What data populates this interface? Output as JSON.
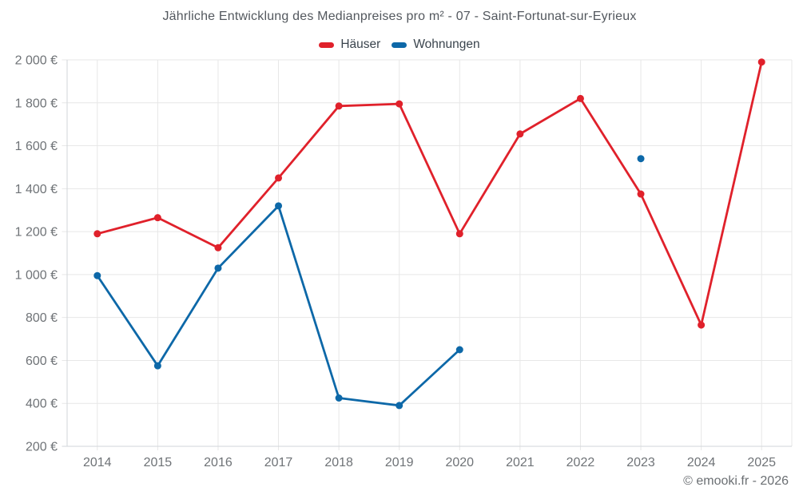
{
  "palette": {
    "background": "#ffffff",
    "grid": "#e7e7e7",
    "axis": "#d2d6da",
    "tick_text": "#6f7377",
    "title_text": "#53585e",
    "legend_text": "#3a444d",
    "footer_text": "#6b6f73",
    "series_red": "#e0212b",
    "series_blue": "#0d68a8"
  },
  "footer": {
    "copyright": "© emooki.fr - 2026"
  },
  "chart_data": {
    "type": "line",
    "title": "Jährliche Entwicklung des Medianpreises pro m² - 07 - Saint-Fortunat-sur-Eyrieux",
    "categories": [
      "2014",
      "2015",
      "2016",
      "2017",
      "2018",
      "2019",
      "2020",
      "2021",
      "2022",
      "2023",
      "2024",
      "2025"
    ],
    "series": [
      {
        "name": "Häuser",
        "slug": "haeuser",
        "color": "#e0212b",
        "values": [
          1190,
          1265,
          1125,
          1450,
          1785,
          1795,
          1190,
          1655,
          1820,
          1375,
          765,
          1990
        ]
      },
      {
        "name": "Wohnungen",
        "slug": "wohnungen",
        "color": "#0d68a8",
        "values": [
          995,
          575,
          1030,
          1320,
          425,
          390,
          650,
          null,
          null,
          1540,
          null,
          null
        ]
      }
    ],
    "xlabel": "",
    "ylabel": "",
    "unit": "€",
    "ylim": [
      200,
      2000
    ],
    "y_ticks": [
      200,
      400,
      600,
      800,
      1000,
      1200,
      1400,
      1600,
      1800,
      2000
    ],
    "y_tick_labels": [
      "200 €",
      "400 €",
      "600 €",
      "800 €",
      "1 000 €",
      "1 200 €",
      "1 400 €",
      "1 600 €",
      "1 800 €",
      "2 000 €"
    ],
    "grid": true,
    "legend_position": "top",
    "marker": "circle"
  }
}
